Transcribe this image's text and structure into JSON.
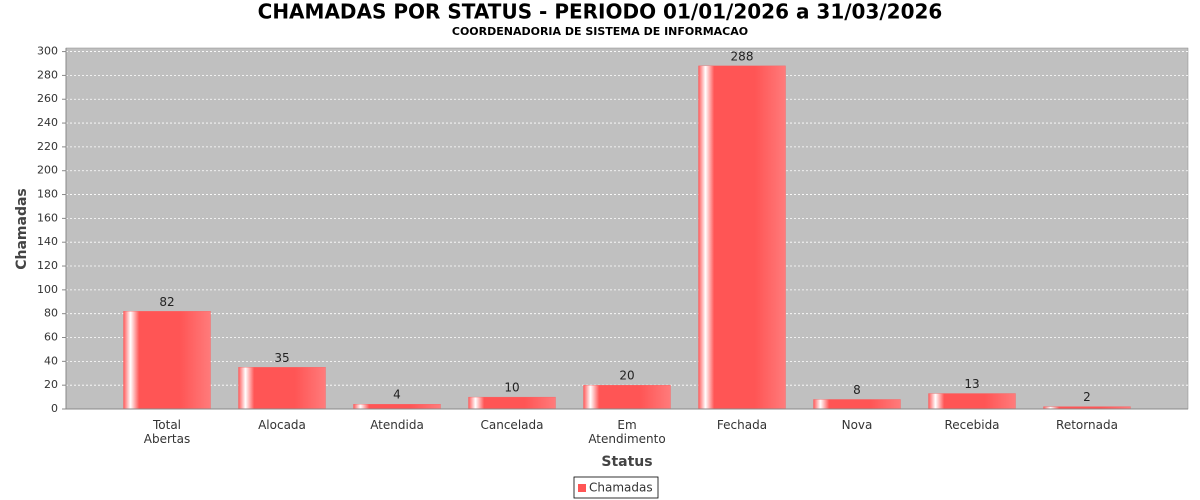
{
  "chart_data": {
    "type": "bar",
    "title": "CHAMADAS POR STATUS - PERIODO 01/01/2026 a 31/03/2026",
    "subtitle": "COORDENADORIA DE SISTEMA DE INFORMACAO",
    "x_label": "Status",
    "y_label": "Chamadas",
    "categories": [
      "Total Abertas",
      "Alocada",
      "Atendida",
      "Cancelada",
      "Em Atendimento",
      "Fechada",
      "Nova",
      "Recebida",
      "Retornada"
    ],
    "series": [
      {
        "name": "Chamadas",
        "color": "#ff5555",
        "values": [
          82,
          35,
          4,
          10,
          20,
          288,
          8,
          13,
          2
        ]
      }
    ],
    "ylim": [
      0,
      303
    ],
    "yticks": [
      0,
      20,
      40,
      60,
      80,
      100,
      120,
      140,
      160,
      180,
      200,
      220,
      240,
      260,
      280,
      300
    ],
    "grid": true,
    "legend": "bottom"
  }
}
